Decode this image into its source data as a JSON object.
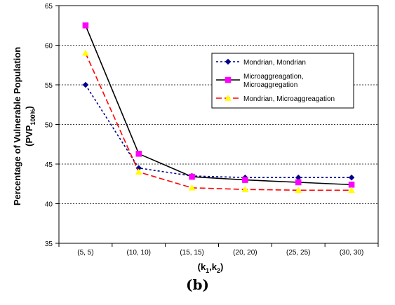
{
  "chart_data": {
    "type": "line",
    "categories": [
      "(5, 5)",
      "(10, 10)",
      "(15, 15)",
      "(20, 20)",
      "(25, 25)",
      "(30, 30)"
    ],
    "ylim": [
      35,
      65
    ],
    "yticks": [
      35,
      40,
      45,
      50,
      55,
      60,
      65
    ],
    "grid": true,
    "ylabel_line1": "Percentage of Vulnerable Population",
    "ylabel_line2_main": "(PVP",
    "ylabel_line2_sub": "100%",
    "ylabel_line2_end": ")",
    "xlabel_main": "(k",
    "xlabel_sub1": "1",
    "xlabel_mid": ",k",
    "xlabel_sub2": "2",
    "xlabel_end": ")",
    "legend_position": "top-right",
    "series": [
      {
        "legend_lines": [
          "Mondrian, Mondrian"
        ],
        "values": [
          55.0,
          44.5,
          43.5,
          43.3,
          43.3,
          43.3
        ],
        "color": "#00008B",
        "dash": "3,3",
        "marker": "diamond",
        "marker_color": "#00008B"
      },
      {
        "legend_lines": [
          "Microaggreagation,",
          "Microaggregation"
        ],
        "values": [
          62.5,
          46.3,
          43.4,
          43.0,
          42.7,
          42.4
        ],
        "color": "#000000",
        "dash": "",
        "marker": "square",
        "marker_color": "#FF00FF"
      },
      {
        "legend_lines": [
          "Mondrian, Microaggreagation"
        ],
        "values": [
          59.0,
          44.0,
          42.0,
          41.8,
          41.7,
          41.7
        ],
        "color": "#FF0000",
        "dash": "8,4",
        "marker": "triangle",
        "marker_color": "#FFFF00"
      }
    ]
  },
  "caption": "(b)"
}
